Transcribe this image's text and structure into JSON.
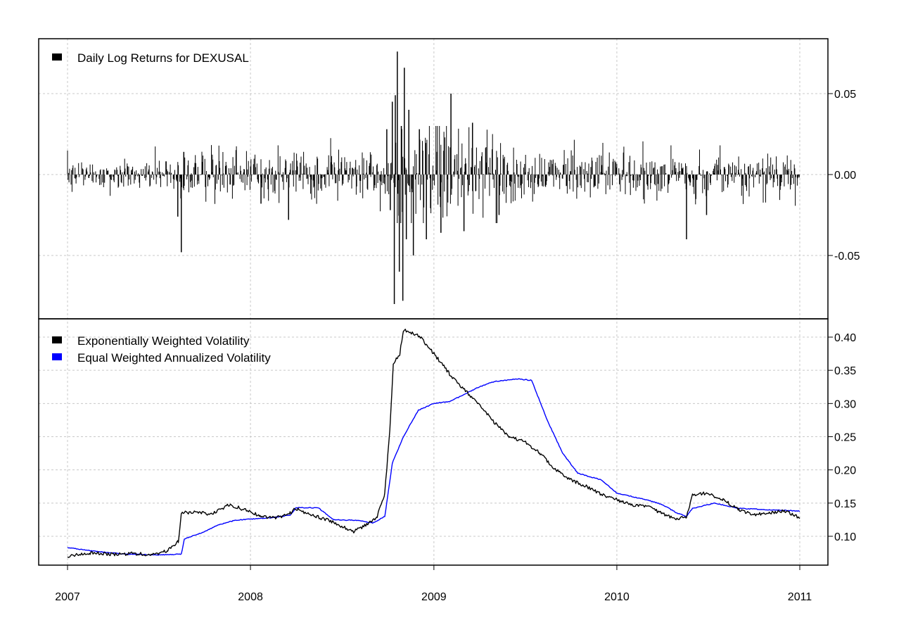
{
  "colors": {
    "ewma": "#000000",
    "equal": "#0000ff",
    "returns": "#000000",
    "grid": "#c8c8c8"
  },
  "chart_data": [
    {
      "type": "bar",
      "panel": "top",
      "x_axis": "dates",
      "xlim": [
        "2007-01-01",
        "2011-01-01"
      ],
      "ylim": [
        -0.08,
        0.08
      ],
      "yticks": [
        0.05,
        0.0,
        -0.05
      ],
      "ytick_labels": [
        "0.05",
        "0.00",
        "-0.05"
      ],
      "grid": true,
      "legend_position": "top-left",
      "series": [
        {
          "name": "Daily Log Returns for DEXUSAL",
          "seed": 1,
          "spikes": [
            {
              "date": "2007-08-16",
              "value": -0.048
            },
            {
              "date": "2007-08-09",
              "value": -0.026
            },
            {
              "date": "2007-08-21",
              "value": 0.014
            },
            {
              "date": "2008-03-17",
              "value": -0.028
            },
            {
              "date": "2008-01-22",
              "value": -0.018
            },
            {
              "date": "2008-09-29",
              "value": 0.028
            },
            {
              "date": "2008-10-06",
              "value": -0.022
            },
            {
              "date": "2008-10-10",
              "value": 0.045
            },
            {
              "date": "2008-10-14",
              "value": -0.08
            },
            {
              "date": "2008-10-16",
              "value": 0.049
            },
            {
              "date": "2008-10-20",
              "value": 0.076
            },
            {
              "date": "2008-10-24",
              "value": -0.06
            },
            {
              "date": "2008-10-28",
              "value": 0.03
            },
            {
              "date": "2008-10-31",
              "value": -0.078
            },
            {
              "date": "2008-11-03",
              "value": 0.066
            },
            {
              "date": "2008-11-07",
              "value": -0.04
            },
            {
              "date": "2008-11-12",
              "value": 0.04
            },
            {
              "date": "2008-11-21",
              "value": -0.05
            },
            {
              "date": "2008-12-03",
              "value": 0.028
            },
            {
              "date": "2008-12-17",
              "value": -0.04
            },
            {
              "date": "2009-01-15",
              "value": -0.036
            },
            {
              "date": "2009-02-04",
              "value": 0.05
            },
            {
              "date": "2009-03-02",
              "value": -0.035
            },
            {
              "date": "2009-03-19",
              "value": 0.032
            },
            {
              "date": "2009-05-11",
              "value": -0.025
            },
            {
              "date": "2010-05-20",
              "value": -0.04
            },
            {
              "date": "2010-06-29",
              "value": -0.025
            }
          ]
        }
      ]
    },
    {
      "type": "line",
      "panel": "bottom",
      "x_axis": "dates",
      "xlim": [
        "2007-01-01",
        "2011-01-01"
      ],
      "ylim": [
        0.06,
        0.42
      ],
      "yticks": [
        0.4,
        0.35,
        0.3,
        0.25,
        0.2,
        0.15,
        0.1
      ],
      "ytick_labels": [
        "0.40",
        "0.35",
        "0.30",
        "0.25",
        "0.20",
        "0.15",
        "0.10"
      ],
      "xticks": [
        "2007-01-01",
        "2008-01-01",
        "2009-01-01",
        "2010-01-01",
        "2011-01-01"
      ],
      "xtick_labels": [
        "2007",
        "2008",
        "2009",
        "2010",
        "2011"
      ],
      "grid": true,
      "legend_position": "top-left",
      "series": [
        {
          "name": "Exponentially Weighted Volatility",
          "points": [
            [
              "2007-01-01",
              0.07
            ],
            [
              "2007-02-15",
              0.075
            ],
            [
              "2007-04-01",
              0.073
            ],
            [
              "2007-05-15",
              0.074
            ],
            [
              "2007-06-15",
              0.072
            ],
            [
              "2007-07-20",
              0.078
            ],
            [
              "2007-08-10",
              0.092
            ],
            [
              "2007-08-16",
              0.135
            ],
            [
              "2007-09-15",
              0.137
            ],
            [
              "2007-10-15",
              0.133
            ],
            [
              "2007-11-20",
              0.148
            ],
            [
              "2007-12-20",
              0.14
            ],
            [
              "2008-01-20",
              0.131
            ],
            [
              "2008-02-20",
              0.127
            ],
            [
              "2008-03-20",
              0.135
            ],
            [
              "2008-04-01",
              0.142
            ],
            [
              "2008-05-01",
              0.132
            ],
            [
              "2008-06-01",
              0.125
            ],
            [
              "2008-07-01",
              0.115
            ],
            [
              "2008-07-25",
              0.107
            ],
            [
              "2008-08-20",
              0.118
            ],
            [
              "2008-09-10",
              0.13
            ],
            [
              "2008-09-25",
              0.165
            ],
            [
              "2008-10-05",
              0.26
            ],
            [
              "2008-10-12",
              0.36
            ],
            [
              "2008-10-25",
              0.375
            ],
            [
              "2008-11-01",
              0.41
            ],
            [
              "2008-11-15",
              0.408
            ],
            [
              "2008-12-05",
              0.4
            ],
            [
              "2009-01-01",
              0.375
            ],
            [
              "2009-02-01",
              0.345
            ],
            [
              "2009-03-01",
              0.322
            ],
            [
              "2009-04-01",
              0.298
            ],
            [
              "2009-05-01",
              0.272
            ],
            [
              "2009-06-01",
              0.25
            ],
            [
              "2009-07-01",
              0.243
            ],
            [
              "2009-08-01",
              0.225
            ],
            [
              "2009-09-01",
              0.2
            ],
            [
              "2009-10-01",
              0.185
            ],
            [
              "2009-11-01",
              0.175
            ],
            [
              "2009-12-01",
              0.163
            ],
            [
              "2010-01-01",
              0.155
            ],
            [
              "2010-02-01",
              0.147
            ],
            [
              "2010-03-01",
              0.145
            ],
            [
              "2010-04-01",
              0.135
            ],
            [
              "2010-05-01",
              0.125
            ],
            [
              "2010-05-20",
              0.13
            ],
            [
              "2010-06-01",
              0.162
            ],
            [
              "2010-07-01",
              0.165
            ],
            [
              "2010-08-01",
              0.155
            ],
            [
              "2010-09-01",
              0.14
            ],
            [
              "2010-10-01",
              0.132
            ],
            [
              "2010-11-01",
              0.135
            ],
            [
              "2010-12-01",
              0.138
            ],
            [
              "2011-01-01",
              0.128
            ]
          ]
        },
        {
          "name": "Equal Weighted Annualized Volatility",
          "points": [
            [
              "2007-01-01",
              0.083
            ],
            [
              "2007-03-01",
              0.077
            ],
            [
              "2007-05-01",
              0.073
            ],
            [
              "2007-07-01",
              0.072
            ],
            [
              "2007-08-16",
              0.073
            ],
            [
              "2007-08-22",
              0.096
            ],
            [
              "2007-10-01",
              0.107
            ],
            [
              "2007-11-01",
              0.118
            ],
            [
              "2007-12-01",
              0.124
            ],
            [
              "2008-01-01",
              0.126
            ],
            [
              "2008-02-15",
              0.128
            ],
            [
              "2008-03-20",
              0.132
            ],
            [
              "2008-04-01",
              0.143
            ],
            [
              "2008-05-15",
              0.143
            ],
            [
              "2008-06-15",
              0.125
            ],
            [
              "2008-08-01",
              0.124
            ],
            [
              "2008-09-01",
              0.12
            ],
            [
              "2008-09-25",
              0.13
            ],
            [
              "2008-10-10",
              0.21
            ],
            [
              "2008-11-01",
              0.25
            ],
            [
              "2008-12-01",
              0.29
            ],
            [
              "2009-01-01",
              0.3
            ],
            [
              "2009-02-01",
              0.303
            ],
            [
              "2009-03-01",
              0.313
            ],
            [
              "2009-04-01",
              0.325
            ],
            [
              "2009-05-01",
              0.333
            ],
            [
              "2009-06-15",
              0.337
            ],
            [
              "2009-07-15",
              0.335
            ],
            [
              "2009-08-15",
              0.275
            ],
            [
              "2009-09-15",
              0.225
            ],
            [
              "2009-10-15",
              0.195
            ],
            [
              "2009-12-01",
              0.185
            ],
            [
              "2010-01-01",
              0.165
            ],
            [
              "2010-03-01",
              0.155
            ],
            [
              "2010-04-01",
              0.148
            ],
            [
              "2010-05-01",
              0.135
            ],
            [
              "2010-05-20",
              0.13
            ],
            [
              "2010-06-01",
              0.142
            ],
            [
              "2010-07-15",
              0.15
            ],
            [
              "2010-09-01",
              0.142
            ],
            [
              "2010-11-01",
              0.14
            ],
            [
              "2011-01-01",
              0.138
            ]
          ]
        }
      ]
    }
  ]
}
